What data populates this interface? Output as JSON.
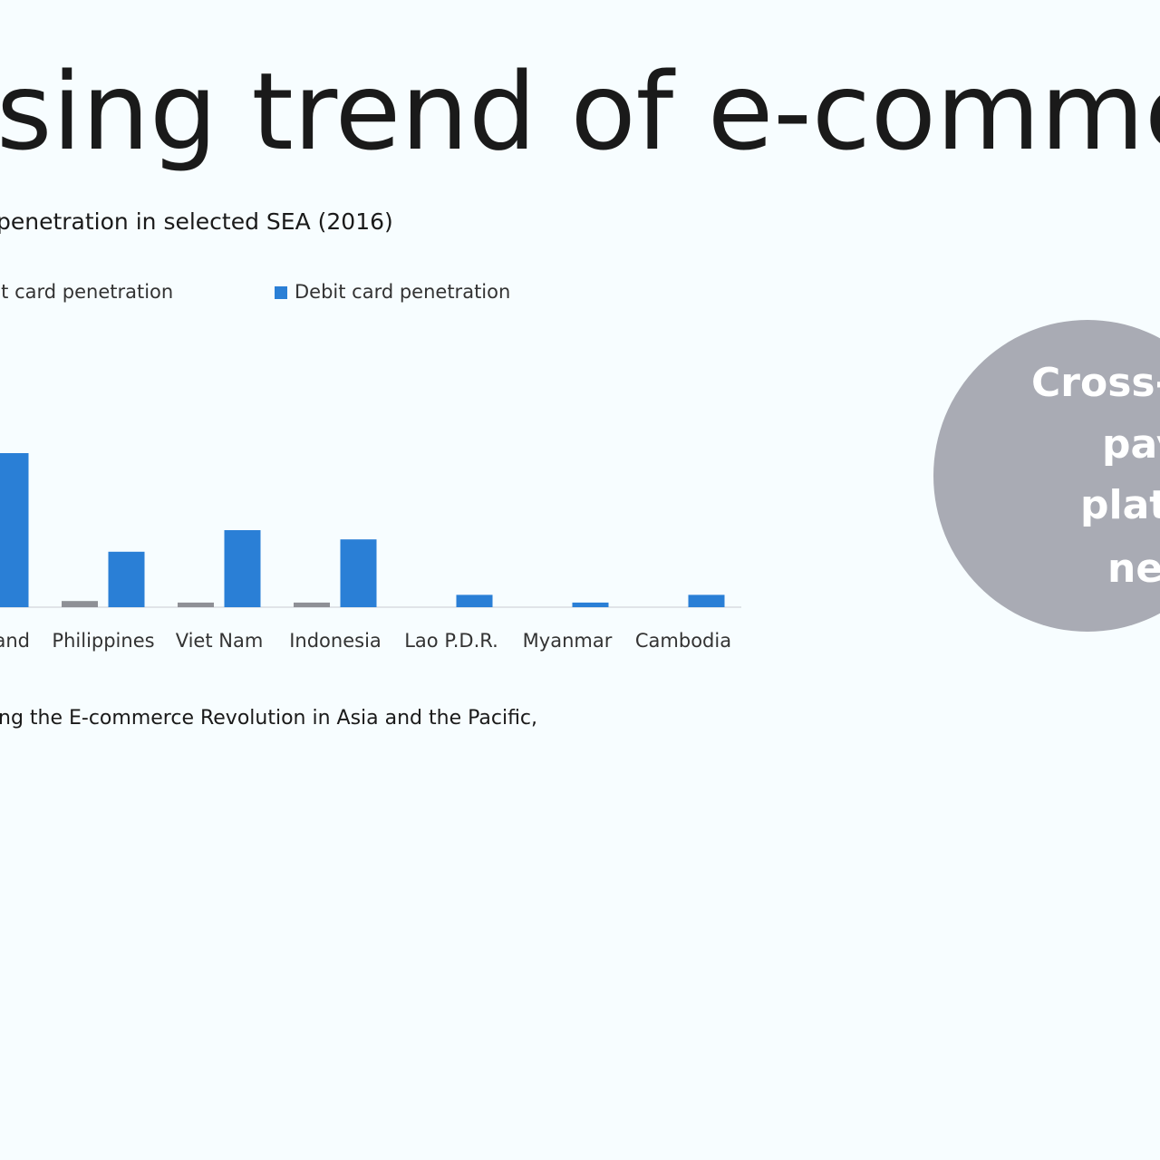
{
  "slide_title": "sing trend of e-commerce",
  "source": "ng the E-commerce Revolution in Asia and the Pacific,",
  "callout": {
    "lines": [
      "Cross-",
      "pay",
      "plat",
      "ne"
    ]
  },
  "chart_data": {
    "type": "bar",
    "title": "penetration in selected SEA (2016)",
    "categories": [
      "and",
      "Philippines",
      "Viet Nam",
      "Indonesia",
      "Lao P.D.R.",
      "Myanmar",
      "Cambodia"
    ],
    "series": [
      {
        "name": "dit card penetration",
        "color": "#8e9096",
        "values": [
          null,
          2,
          1.5,
          1.5,
          0,
          0,
          0
        ]
      },
      {
        "name": "Debit card penetration",
        "color": "#2a7fd6",
        "values": [
          50,
          18,
          25,
          22,
          4,
          1.5,
          4
        ]
      }
    ],
    "ylim": [
      0,
      60
    ]
  }
}
